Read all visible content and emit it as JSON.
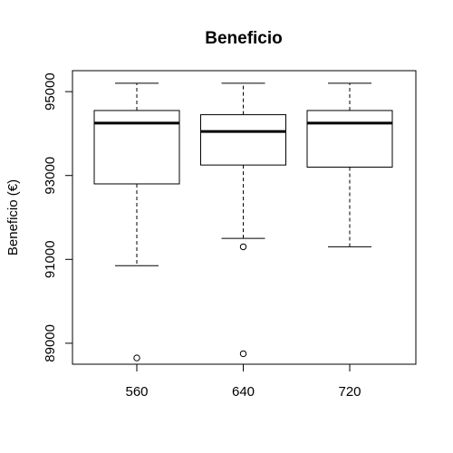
{
  "chart_data": {
    "type": "boxplot",
    "title": "Beneficio",
    "xlabel": "",
    "ylabel": "Beneficio (€)",
    "ylim": [
      88500,
      95500
    ],
    "yticks": [
      89000,
      91000,
      93000,
      95000
    ],
    "yticks_labels": [
      "89000",
      "91000",
      "93000",
      "95000"
    ],
    "categories": [
      "560",
      "640",
      "720"
    ],
    "boxes": [
      {
        "category": "560",
        "whisker_low": 90850,
        "q1": 92800,
        "median": 94250,
        "q3": 94550,
        "whisker_high": 95200,
        "outliers": [
          88650
        ]
      },
      {
        "category": "640",
        "whisker_low": 91500,
        "q1": 93250,
        "median": 94050,
        "q3": 94450,
        "whisker_high": 95200,
        "outliers": [
          91300,
          88750
        ]
      },
      {
        "category": "720",
        "whisker_low": 91300,
        "q1": 93200,
        "median": 94250,
        "q3": 94550,
        "whisker_high": 95200,
        "outliers": []
      }
    ],
    "grid": false,
    "legend": "none"
  }
}
